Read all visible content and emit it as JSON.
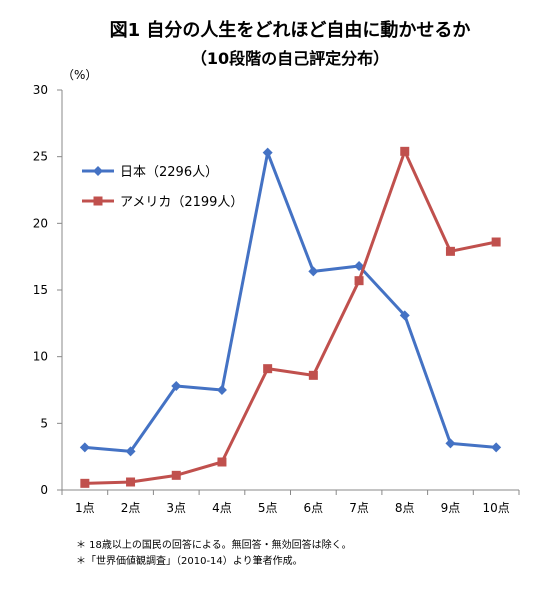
{
  "chart_data": {
    "type": "line",
    "title": "図1 自分の人生をどれほど自由に動かせるか",
    "subtitle": "（10段階の自己評定分布）",
    "ylabel": "（%）",
    "xlabel": "",
    "categories": [
      "1点",
      "2点",
      "3点",
      "4点",
      "5点",
      "6点",
      "7点",
      "8点",
      "9点",
      "10点"
    ],
    "ylim": [
      0,
      30
    ],
    "yticks": [
      0,
      5,
      10,
      15,
      20,
      25,
      30
    ],
    "grid": false,
    "legend_position": "upper-left",
    "series": [
      {
        "name": "日本（2296人）",
        "color": "#4472C4",
        "marker": "diamond",
        "values": [
          3.2,
          2.9,
          7.8,
          7.5,
          25.3,
          16.4,
          16.8,
          13.1,
          3.5,
          3.2
        ]
      },
      {
        "name": "アメリカ（2199人）",
        "color": "#C0504D",
        "marker": "square",
        "values": [
          0.5,
          0.6,
          1.1,
          2.1,
          9.1,
          8.6,
          15.7,
          25.4,
          17.9,
          18.6
        ]
      }
    ],
    "notes": [
      "＊ 18歳以上の国民の回答による。無回答・無効回答は除く。",
      "＊「世界価値観調査」（2010-14）より筆者作成。"
    ]
  }
}
